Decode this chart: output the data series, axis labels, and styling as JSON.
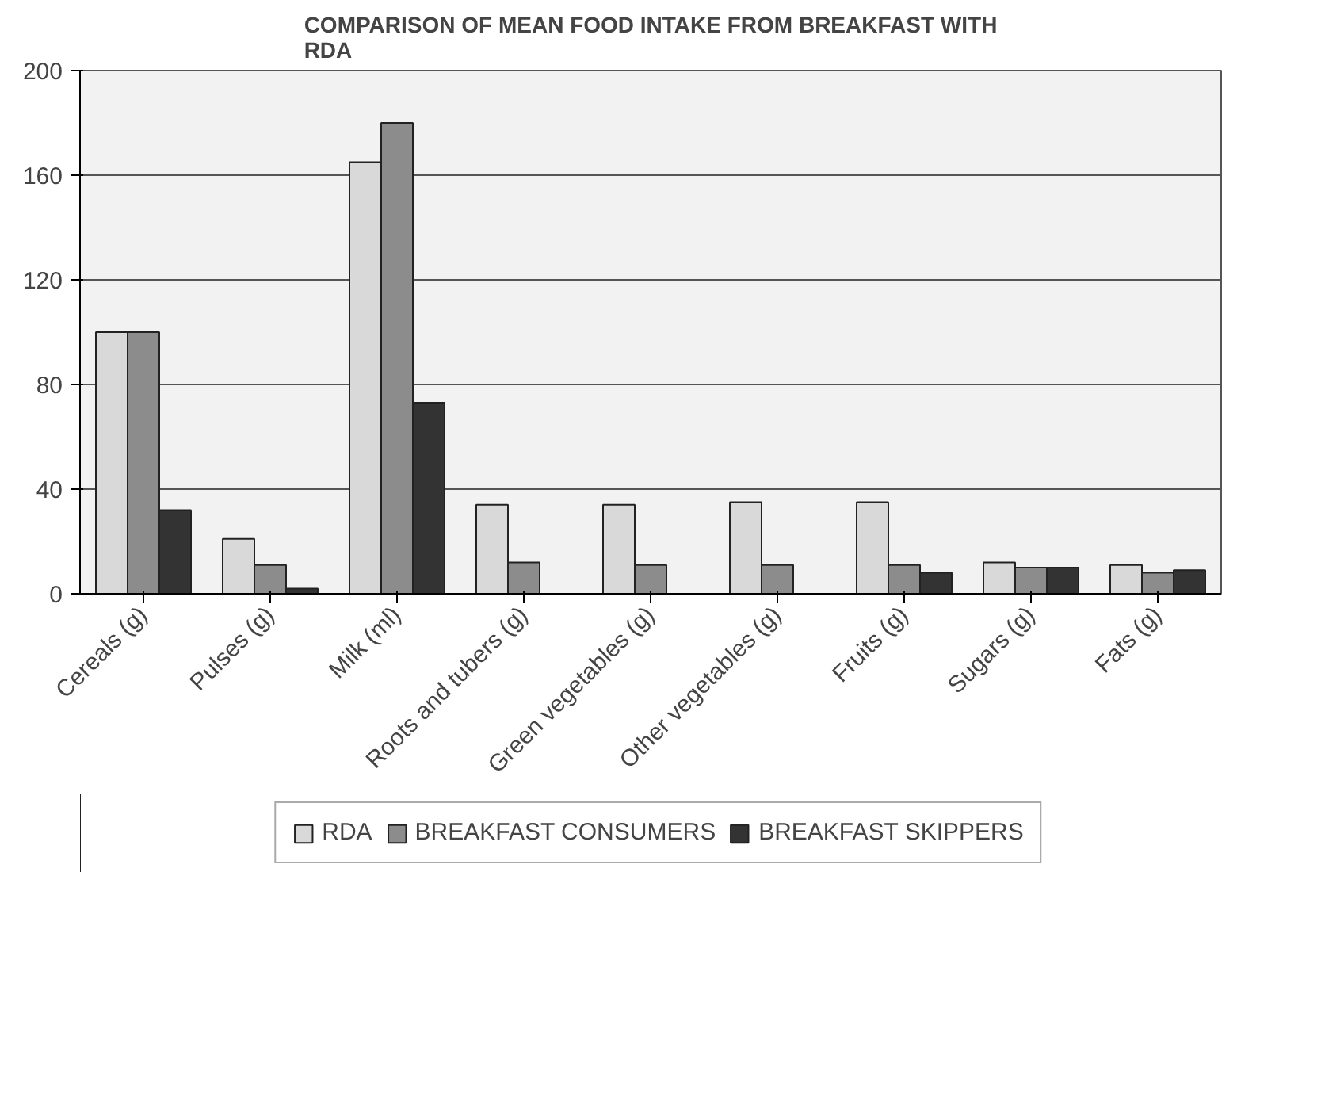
{
  "chart_data": {
    "type": "bar",
    "title": "COMPARISON OF MEAN FOOD INTAKE FROM BREAKFAST WITH RDA",
    "categories": [
      "Cereals (g)",
      "Pulses (g)",
      "Milk (ml)",
      "Roots and tubers (g)",
      "Green vegetables (g)",
      "Other vegetables (g)",
      "Fruits (g)",
      "Sugars (g)",
      "Fats (g)"
    ],
    "series": [
      {
        "name": "RDA",
        "color": "#d9d9d9",
        "values": [
          100,
          21,
          165,
          34,
          34,
          35,
          35,
          12,
          11
        ]
      },
      {
        "name": "BREAKFAST CONSUMERS",
        "color": "#8c8c8c",
        "values": [
          100,
          11,
          180,
          12,
          11,
          11,
          11,
          10,
          8
        ]
      },
      {
        "name": "BREAKFAST SKIPPERS",
        "color": "#333333",
        "values": [
          32,
          2,
          73,
          null,
          null,
          null,
          8,
          10,
          9
        ]
      }
    ],
    "ylim": [
      0,
      200
    ],
    "yticks": [
      0,
      40,
      80,
      120,
      160,
      200
    ],
    "grid": "y",
    "legend": "bottom"
  }
}
